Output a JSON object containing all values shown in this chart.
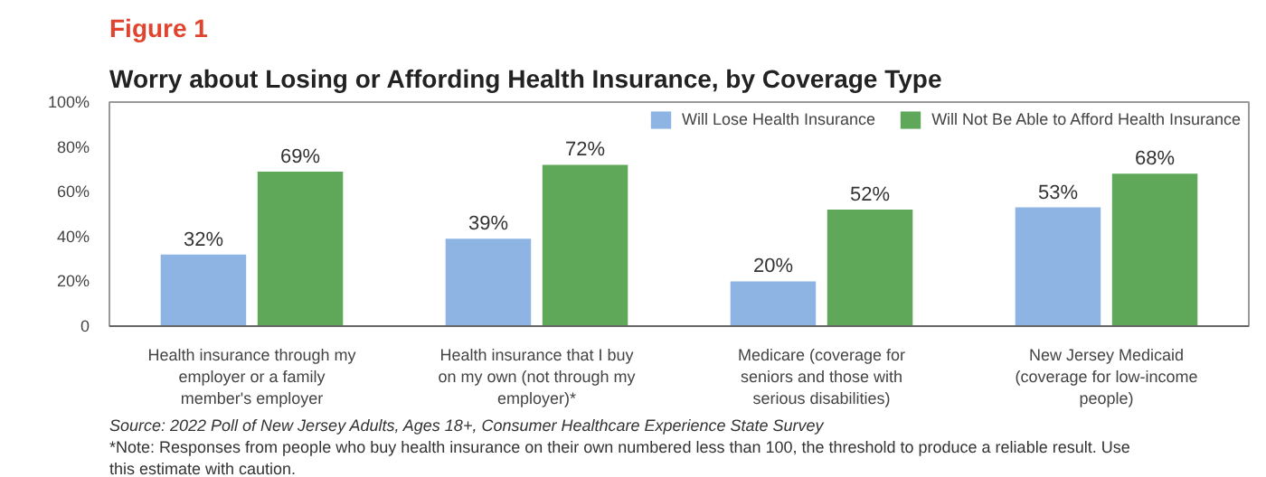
{
  "chart_data": {
    "type": "bar",
    "title": "Figure 1",
    "subtitle": "Worry about Losing or Affording Health Insurance, by Coverage Type",
    "categories": [
      "Health insurance through my employer or a family member's employer",
      "Health insurance that I buy on my own (not through my employer)*",
      "Medicare (coverage for seniors and those with serious disabilities)",
      "New Jersey Medicaid (coverage for low-income people)"
    ],
    "series": [
      {
        "name": "Will Lose Health Insurance",
        "color": "#8db4e2",
        "values": [
          32,
          39,
          20,
          53
        ],
        "value_labels": [
          "32%",
          "39%",
          "20%",
          "53%"
        ]
      },
      {
        "name": "Will Not Be Able to Afford Health Insurance",
        "color": "#5fa85a",
        "values": [
          69,
          72,
          52,
          68
        ],
        "value_labels": [
          "69%",
          "72%",
          "52%",
          "68%"
        ]
      }
    ],
    "ylim": [
      0,
      100
    ],
    "yticks": [
      0,
      {
        "value": 20,
        "label": "20%"
      },
      {
        "value": 40,
        "label": "40%"
      },
      {
        "value": 60,
        "label": "60%"
      },
      {
        "value": 80,
        "label": "80%"
      },
      {
        "value": 100,
        "label": "100%"
      }
    ],
    "legend": "top right",
    "grid": false,
    "annotations": [
      "Source: 2022 Poll of New Jersey Adults, Ages 18+, Consumer Healthcare Experience State Survey",
      "*Note: Responses from people who buy health insurance on their own numbered less than 100, the threshold to produce a reliable result. Use this estimate with caution."
    ]
  }
}
